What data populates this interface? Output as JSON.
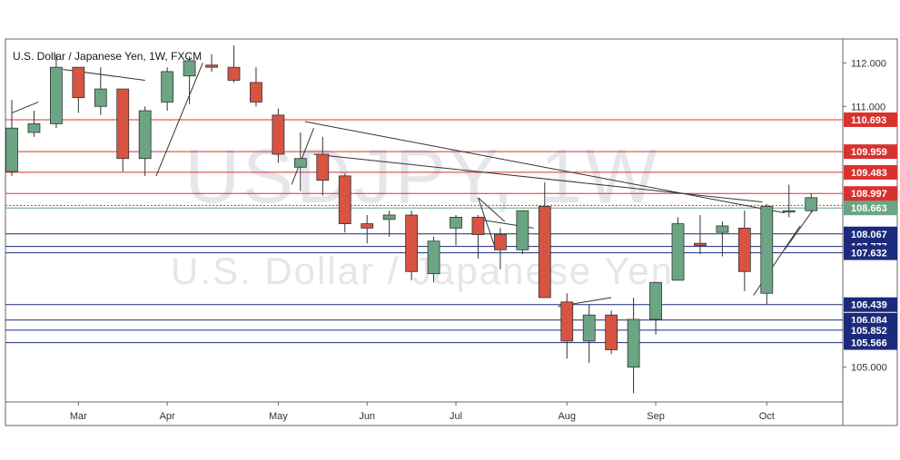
{
  "title": "U.S. Dollar / Japanese Yen, 1W, FXCM",
  "watermark": {
    "symbol": "USDJPY, 1W",
    "name": "U.S. Dollar / Japanese Yen"
  },
  "colors": {
    "bull": "#6ba583",
    "bear": "#d75442",
    "resistance": "#d8322f",
    "support": "#1b2a7a",
    "current": "#6ba583",
    "trendline": "#333333"
  },
  "chart_data": {
    "type": "candlestick",
    "title": "U.S. Dollar / Japanese Yen, 1W, FXCM",
    "ylim": [
      104.2,
      112.55
    ],
    "y_ticks": [
      "112.000",
      "111.000",
      "105.000"
    ],
    "x_tick_labels": [
      {
        "label": "Mar",
        "index": 3
      },
      {
        "label": "Apr",
        "index": 7
      },
      {
        "label": "May",
        "index": 12
      },
      {
        "label": "Jun",
        "index": 16
      },
      {
        "label": "Jul",
        "index": 20
      },
      {
        "label": "Aug",
        "index": 25
      },
      {
        "label": "Sep",
        "index": 29
      },
      {
        "label": "Oct",
        "index": 34
      }
    ],
    "candles": [
      {
        "o": 109.5,
        "h": 111.15,
        "l": 109.4,
        "c": 110.5
      },
      {
        "o": 110.4,
        "h": 110.9,
        "l": 110.3,
        "c": 110.6
      },
      {
        "o": 110.6,
        "h": 112.2,
        "l": 110.5,
        "c": 111.9
      },
      {
        "o": 111.9,
        "h": 111.9,
        "l": 110.85,
        "c": 111.2
      },
      {
        "o": 111.0,
        "h": 111.9,
        "l": 110.8,
        "c": 111.4
      },
      {
        "o": 111.4,
        "h": 111.4,
        "l": 109.5,
        "c": 109.8
      },
      {
        "o": 109.8,
        "h": 111.0,
        "l": 109.4,
        "c": 110.9
      },
      {
        "o": 111.1,
        "h": 111.9,
        "l": 110.9,
        "c": 111.8
      },
      {
        "o": 111.7,
        "h": 112.15,
        "l": 111.05,
        "c": 112.05
      },
      {
        "o": 111.95,
        "h": 112.2,
        "l": 111.8,
        "c": 111.9
      },
      {
        "o": 111.9,
        "h": 112.4,
        "l": 111.55,
        "c": 111.6
      },
      {
        "o": 111.55,
        "h": 111.9,
        "l": 111.0,
        "c": 111.1
      },
      {
        "o": 110.8,
        "h": 110.95,
        "l": 109.7,
        "c": 109.9
      },
      {
        "o": 109.6,
        "h": 110.4,
        "l": 109.05,
        "c": 109.8
      },
      {
        "o": 109.9,
        "h": 110.3,
        "l": 108.95,
        "c": 109.3
      },
      {
        "o": 109.4,
        "h": 109.45,
        "l": 108.1,
        "c": 108.3
      },
      {
        "o": 108.3,
        "h": 108.5,
        "l": 107.85,
        "c": 108.2
      },
      {
        "o": 108.4,
        "h": 108.6,
        "l": 108.0,
        "c": 108.5
      },
      {
        "o": 108.5,
        "h": 108.6,
        "l": 107.0,
        "c": 107.2
      },
      {
        "o": 107.15,
        "h": 108.0,
        "l": 106.95,
        "c": 107.9
      },
      {
        "o": 108.2,
        "h": 108.5,
        "l": 107.8,
        "c": 108.45
      },
      {
        "o": 108.45,
        "h": 108.5,
        "l": 107.5,
        "c": 108.05
      },
      {
        "o": 108.05,
        "h": 108.2,
        "l": 107.25,
        "c": 107.7
      },
      {
        "o": 107.7,
        "h": 108.6,
        "l": 107.6,
        "c": 108.6
      },
      {
        "o": 108.7,
        "h": 109.25,
        "l": 106.6,
        "c": 106.6
      },
      {
        "o": 106.5,
        "h": 106.7,
        "l": 105.2,
        "c": 105.6
      },
      {
        "o": 105.6,
        "h": 106.45,
        "l": 105.1,
        "c": 106.2
      },
      {
        "o": 106.2,
        "h": 106.3,
        "l": 105.3,
        "c": 105.4
      },
      {
        "o": 105.0,
        "h": 106.6,
        "l": 104.4,
        "c": 106.1
      },
      {
        "o": 106.1,
        "h": 106.95,
        "l": 105.75,
        "c": 106.95
      },
      {
        "o": 107.0,
        "h": 108.45,
        "l": 107.0,
        "c": 108.3
      },
      {
        "o": 107.85,
        "h": 108.5,
        "l": 107.6,
        "c": 107.8
      },
      {
        "o": 108.1,
        "h": 108.35,
        "l": 107.55,
        "c": 108.25
      },
      {
        "o": 108.2,
        "h": 108.6,
        "l": 106.75,
        "c": 107.2
      },
      {
        "o": 106.7,
        "h": 108.75,
        "l": 106.45,
        "c": 108.7
      },
      {
        "o": 108.6,
        "h": 109.2,
        "l": 108.45,
        "c": 108.6
      },
      {
        "o": 108.6,
        "h": 109.0,
        "l": 108.55,
        "c": 108.9
      }
    ],
    "resistance_levels": [
      "110.693",
      "109.959",
      "109.483",
      "108.997",
      "108.722"
    ],
    "current_price": "108.663",
    "support_levels": [
      "108.067",
      "107.777",
      "107.632",
      "106.439",
      "106.084",
      "105.852",
      "105.566"
    ],
    "trendlines": [
      {
        "x1": 0,
        "y1": 110.85,
        "x2": 1.2,
        "y2": 111.1
      },
      {
        "x1": 2.3,
        "y1": 111.85,
        "x2": 6.0,
        "y2": 111.6
      },
      {
        "x1": 6.5,
        "y1": 109.4,
        "x2": 8.6,
        "y2": 112.0
      },
      {
        "x1": 13.2,
        "y1": 110.65,
        "x2": 34.8,
        "y2": 108.55
      },
      {
        "x1": 13.6,
        "y1": 109.9,
        "x2": 33.8,
        "y2": 108.8
      },
      {
        "x1": 12.6,
        "y1": 109.2,
        "x2": 13.6,
        "y2": 110.5
      },
      {
        "x1": 21.0,
        "y1": 108.9,
        "x2": 22.2,
        "y2": 108.35
      },
      {
        "x1": 21.0,
        "y1": 108.9,
        "x2": 21.8,
        "y2": 107.7
      },
      {
        "x1": 21.0,
        "y1": 108.4,
        "x2": 23.5,
        "y2": 108.2
      },
      {
        "x1": 24.6,
        "y1": 106.4,
        "x2": 27.0,
        "y2": 106.6
      },
      {
        "x1": 33.4,
        "y1": 106.65,
        "x2": 35.5,
        "y2": 108.25
      },
      {
        "x1": 34.8,
        "y1": 107.7,
        "x2": 36.2,
        "y2": 108.7
      }
    ]
  }
}
